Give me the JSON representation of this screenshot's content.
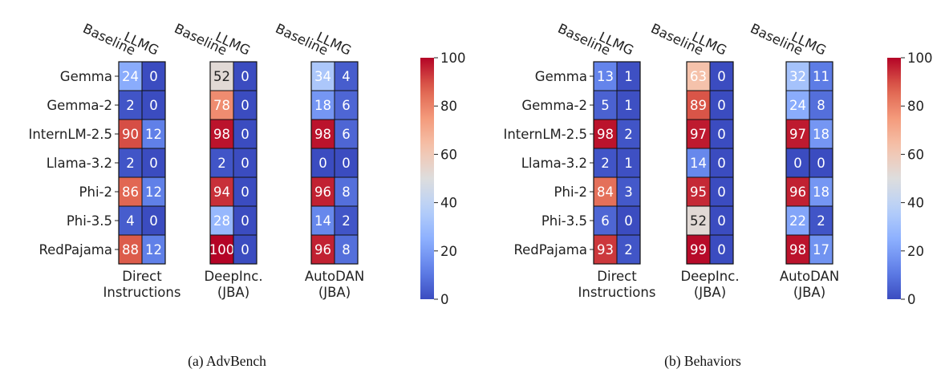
{
  "chart_data": [
    {
      "type": "heatmap",
      "caption": "(a) AdvBench",
      "rows": [
        "Gemma",
        "Gemma-2",
        "InternLM-2.5",
        "Llama-3.2",
        "Phi-2",
        "Phi-3.5",
        "RedPajama"
      ],
      "column_labels": [
        "Baseline",
        "LLMG"
      ],
      "groups": [
        {
          "label_line1": "Direct",
          "label_line2": "Instructions",
          "values": [
            [
              24,
              0
            ],
            [
              2,
              0
            ],
            [
              90,
              12
            ],
            [
              2,
              0
            ],
            [
              86,
              12
            ],
            [
              4,
              0
            ],
            [
              88,
              12
            ]
          ]
        },
        {
          "label_line1": "DeepInc.",
          "label_line2": "(JBA)",
          "values": [
            [
              52,
              0
            ],
            [
              78,
              0
            ],
            [
              98,
              0
            ],
            [
              2,
              0
            ],
            [
              94,
              0
            ],
            [
              28,
              0
            ],
            [
              100,
              0
            ]
          ]
        },
        {
          "label_line1": "AutoDAN",
          "label_line2": "(JBA)",
          "values": [
            [
              34,
              4
            ],
            [
              18,
              6
            ],
            [
              98,
              6
            ],
            [
              0,
              0
            ],
            [
              96,
              8
            ],
            [
              14,
              2
            ],
            [
              96,
              8
            ]
          ]
        }
      ],
      "colorbar": {
        "colormap": "coolwarm",
        "range": [
          0,
          100
        ],
        "ticks": [
          "0",
          "20",
          "40",
          "60",
          "80",
          "100"
        ]
      }
    },
    {
      "type": "heatmap",
      "caption": "(b) Behaviors",
      "rows": [
        "Gemma",
        "Gemma-2",
        "InternLM-2.5",
        "Llama-3.2",
        "Phi-2",
        "Phi-3.5",
        "RedPajama"
      ],
      "column_labels": [
        "Baseline",
        "LLMG"
      ],
      "groups": [
        {
          "label_line1": "Direct",
          "label_line2": "Instructions",
          "values": [
            [
              13,
              1
            ],
            [
              5,
              1
            ],
            [
              98,
              2
            ],
            [
              2,
              1
            ],
            [
              84,
              3
            ],
            [
              6,
              0
            ],
            [
              93,
              2
            ]
          ]
        },
        {
          "label_line1": "DeepInc.",
          "label_line2": "(JBA)",
          "values": [
            [
              63,
              0
            ],
            [
              89,
              0
            ],
            [
              97,
              0
            ],
            [
              14,
              0
            ],
            [
              95,
              0
            ],
            [
              52,
              0
            ],
            [
              99,
              0
            ]
          ]
        },
        {
          "label_line1": "AutoDAN",
          "label_line2": "(JBA)",
          "values": [
            [
              32,
              11
            ],
            [
              24,
              8
            ],
            [
              97,
              18
            ],
            [
              0,
              0
            ],
            [
              96,
              18
            ],
            [
              22,
              2
            ],
            [
              98,
              17
            ]
          ]
        }
      ],
      "colorbar": {
        "colormap": "coolwarm",
        "range": [
          0,
          100
        ],
        "ticks": [
          "0",
          "20",
          "40",
          "60",
          "80",
          "100"
        ]
      }
    }
  ]
}
